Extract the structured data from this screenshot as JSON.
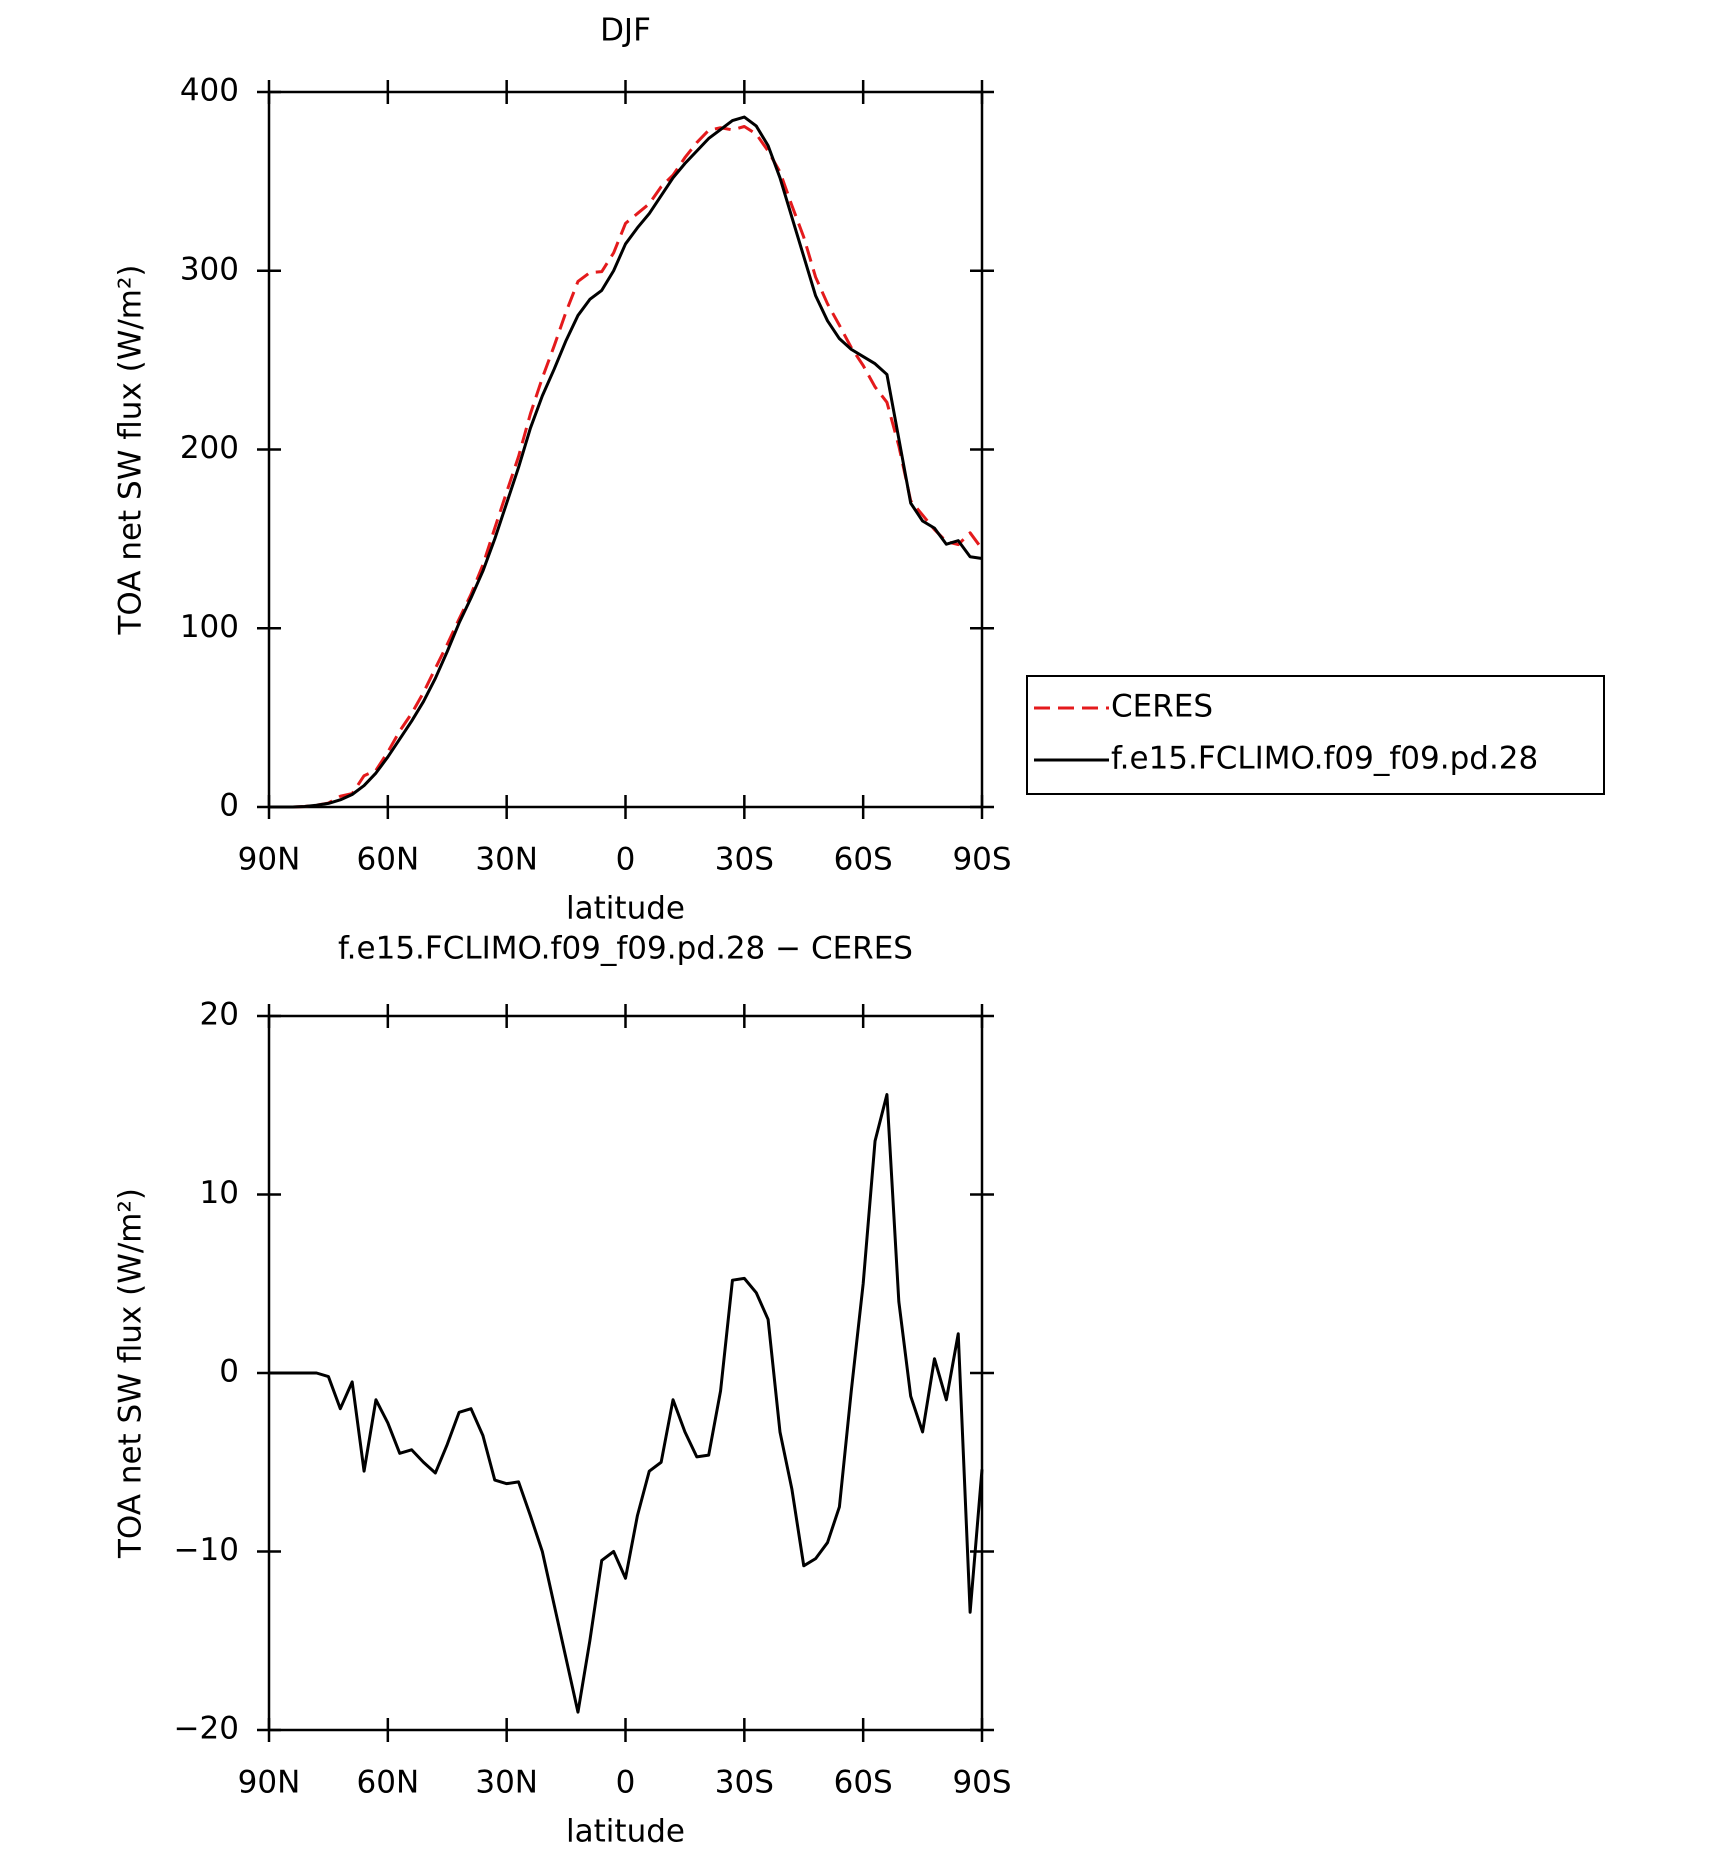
{
  "chart_data": [
    {
      "type": "line",
      "title": "DJF",
      "xlabel": "latitude",
      "ylabel": "TOA net SW flux (W/m²)",
      "x": [
        90,
        87,
        84,
        81,
        78,
        75,
        72,
        69,
        66,
        63,
        60,
        57,
        54,
        51,
        48,
        45,
        42,
        39,
        36,
        33,
        30,
        27,
        24,
        21,
        18,
        15,
        12,
        9,
        6,
        3,
        0,
        -3,
        -6,
        -9,
        -12,
        -15,
        -18,
        -21,
        -24,
        -27,
        -30,
        -33,
        -36,
        -39,
        -42,
        -45,
        -48,
        -51,
        -54,
        -57,
        -60,
        -63,
        -66,
        -69,
        -72,
        -75,
        -78,
        -81,
        -84,
        -87,
        -90
      ],
      "xlim": [
        90,
        -90
      ],
      "xticks": [
        {
          "value": 90,
          "label": "90N"
        },
        {
          "value": 60,
          "label": "60N"
        },
        {
          "value": 30,
          "label": "30N"
        },
        0,
        {
          "value": -30,
          "label": "30S"
        },
        {
          "value": -60,
          "label": "60S"
        },
        {
          "value": -90,
          "label": "90S"
        }
      ],
      "ylim": [
        0,
        400
      ],
      "yticks": [
        0,
        100,
        200,
        300,
        400
      ],
      "legend": "right",
      "series": [
        {
          "name": "CERES",
          "color": "#e41a1c",
          "dash": true,
          "values": [
            0,
            0,
            0,
            0.3,
            1,
            2.2,
            6,
            7.5,
            17.5,
            20.5,
            30.8,
            42.5,
            52.3,
            64,
            77.6,
            91,
            105.2,
            119,
            135.5,
            156,
            176.2,
            196.1,
            220,
            240,
            258,
            277,
            294,
            299,
            299.5,
            310,
            326.5,
            332,
            337.5,
            347,
            353.5,
            363.3,
            371.7,
            378.6,
            380,
            378.8,
            380.7,
            376.5,
            367,
            355.3,
            336.5,
            318.8,
            296.4,
            281.5,
            269.5,
            257,
            247,
            235,
            226.4,
            202,
            171.3,
            163.3,
            155.2,
            148.5,
            146.8,
            153.4,
            144.4
          ]
        },
        {
          "name": "f.e15.FCLIMO.f09_f09.pd.28",
          "color": "#000000",
          "dash": false,
          "values": [
            0,
            0,
            0,
            0.3,
            1,
            2,
            4,
            7,
            12,
            19,
            28,
            38,
            48,
            59,
            72,
            87,
            103,
            117,
            132,
            150,
            170,
            190,
            212,
            230,
            245,
            261,
            275,
            284,
            289,
            300,
            315,
            324,
            332,
            342,
            352,
            360,
            367,
            374,
            379,
            384,
            386,
            381,
            370,
            352,
            330,
            308,
            286,
            272,
            262,
            256,
            252,
            248,
            242,
            206,
            170,
            160,
            156,
            147,
            149,
            140,
            139
          ]
        }
      ]
    },
    {
      "type": "line",
      "title": "f.e15.FCLIMO.f09_f09.pd.28 − CERES",
      "xlabel": "latitude",
      "ylabel": "TOA net SW flux (W/m²)",
      "x": [
        90,
        87,
        84,
        81,
        78,
        75,
        72,
        69,
        66,
        63,
        60,
        57,
        54,
        51,
        48,
        45,
        42,
        39,
        36,
        33,
        30,
        27,
        24,
        21,
        18,
        15,
        12,
        9,
        6,
        3,
        0,
        -3,
        -6,
        -9,
        -12,
        -15,
        -18,
        -21,
        -24,
        -27,
        -30,
        -33,
        -36,
        -39,
        -42,
        -45,
        -48,
        -51,
        -54,
        -57,
        -60,
        -63,
        -66,
        -69,
        -72,
        -75,
        -78,
        -81,
        -84,
        -87,
        -90
      ],
      "xlim": [
        90,
        -90
      ],
      "xticks": [
        {
          "value": 90,
          "label": "90N"
        },
        {
          "value": 60,
          "label": "60N"
        },
        {
          "value": 30,
          "label": "30N"
        },
        0,
        {
          "value": -30,
          "label": "30S"
        },
        {
          "value": -60,
          "label": "60S"
        },
        {
          "value": -90,
          "label": "90S"
        }
      ],
      "ylim": [
        -20,
        20
      ],
      "yticks": [
        {
          "value": -20,
          "label": "−20"
        },
        {
          "value": -10,
          "label": "−10"
        },
        0,
        10,
        20
      ],
      "series": [
        {
          "color": "#000000",
          "dash": false,
          "values": [
            0,
            0,
            0,
            0,
            0,
            -0.2,
            -2,
            -0.5,
            -5.5,
            -1.5,
            -2.8,
            -4.5,
            -4.3,
            -5,
            -5.6,
            -4,
            -2.2,
            -2,
            -3.5,
            -6,
            -6.2,
            -6.1,
            -8,
            -10,
            -13,
            -16,
            -19,
            -15,
            -10.5,
            -10,
            -11.5,
            -8,
            -5.5,
            -5,
            -1.5,
            -3.3,
            -4.7,
            -4.6,
            -1,
            5.2,
            5.3,
            4.5,
            3,
            -3.3,
            -6.5,
            -10.8,
            -10.4,
            -9.5,
            -7.5,
            -1,
            5,
            13,
            15.6,
            4,
            -1.3,
            -3.3,
            0.8,
            -1.5,
            2.2,
            -13.4,
            -5.4
          ]
        }
      ]
    }
  ]
}
